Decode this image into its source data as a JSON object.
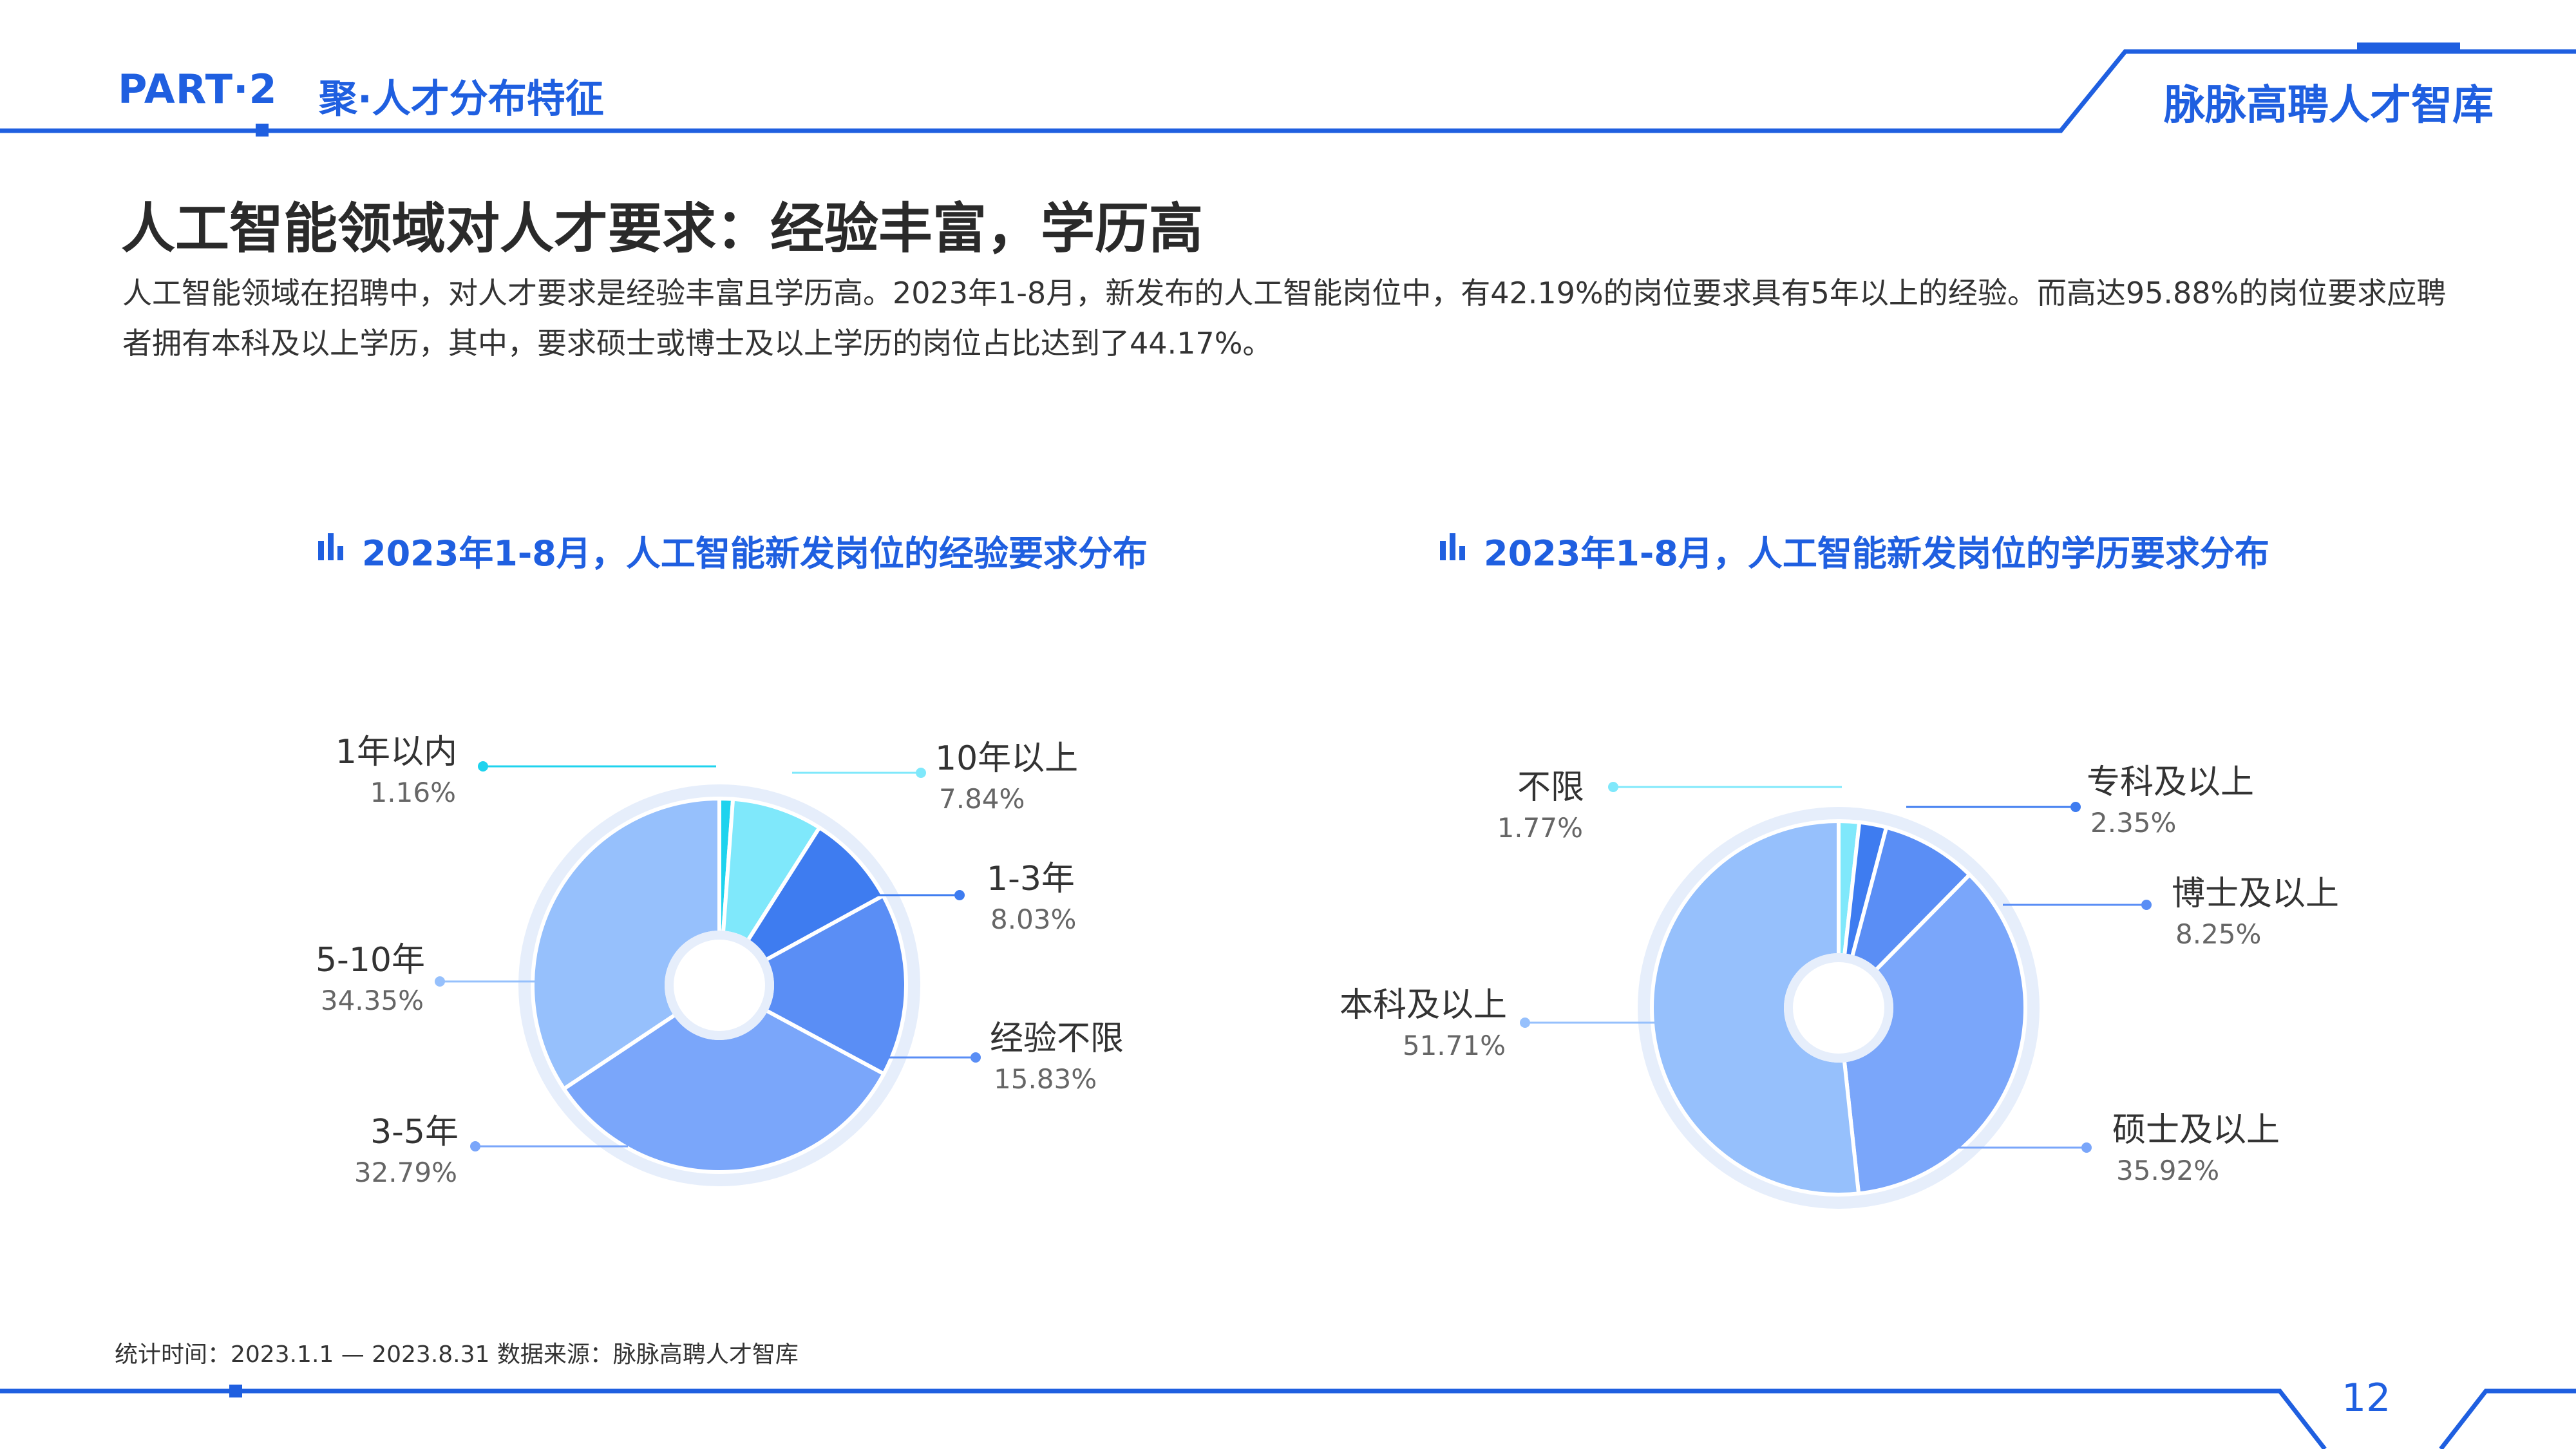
{
  "header": {
    "part": "PART·2",
    "section": "聚·人才分布特征",
    "brand": "脉脉高聘人才智库"
  },
  "title": "人工智能领域对人才要求：经验丰富，学历高",
  "description": "人工智能领域在招聘中，对人才要求是经验丰富且学历高。2023年1-8月，新发布的人工智能岗位中，有42.19%的岗位要求具有5年以上的经验。而高达95.88%的岗位要求应聘者拥有本科及以上学历，其中，要求硕士或博士及以上学历的岗位占比达到了44.17%。",
  "footer": "统计时间：2023.1.1 — 2023.8.31   数据来源：脉脉高聘人才智库",
  "page_number": "12",
  "colors": {
    "accent": "#1f5fe0",
    "ring": "#e6eefb",
    "cyan": "#1fd3ee",
    "light_cyan": "#7fe8fb",
    "blue": "#3e7cf0",
    "mid_blue": "#5a8ef5",
    "soft_blue": "#7aa6fa",
    "pale_blue": "#96c0fc"
  },
  "chart_data": [
    {
      "type": "pie",
      "title": "2023年1-8月，人工智能新发岗位的经验要求分布",
      "categories": [
        "1年以内",
        "10年以上",
        "1-3年",
        "经验不限",
        "3-5年",
        "5-10年"
      ],
      "values": [
        1.16,
        7.84,
        8.03,
        15.83,
        32.79,
        34.35
      ],
      "value_labels": [
        "1.16%",
        "7.84%",
        "8.03%",
        "15.83%",
        "32.79%",
        "34.35%"
      ],
      "colors": [
        "#1fd3ee",
        "#7fe8fb",
        "#3e7cf0",
        "#5a8ef5",
        "#7aa6fa",
        "#96c0fc"
      ]
    },
    {
      "type": "pie",
      "title": "2023年1-8月，人工智能新发岗位的学历要求分布",
      "categories": [
        "不限",
        "专科及以上",
        "博士及以上",
        "硕士及以上",
        "本科及以上"
      ],
      "values": [
        1.77,
        2.35,
        8.25,
        35.92,
        51.71
      ],
      "value_labels": [
        "1.77%",
        "2.35%",
        "8.25%",
        "35.92%",
        "51.71%"
      ],
      "colors": [
        "#7fe8fb",
        "#3e7cf0",
        "#5a8ef5",
        "#7aa6fa",
        "#96c0fc"
      ]
    }
  ]
}
